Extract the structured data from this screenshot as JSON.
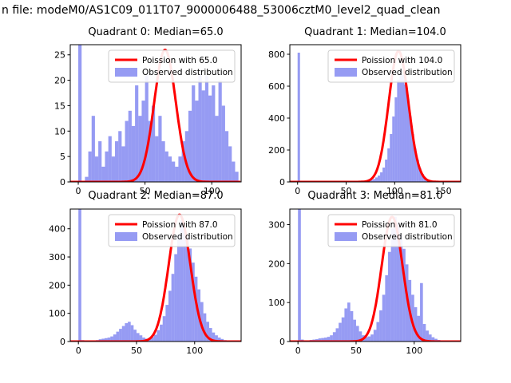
{
  "figure": {
    "title": "n file: modeM0/AS1C09_011T07_9000006488_53006cztM0_level2_quad_clean",
    "background": "#ffffff"
  },
  "colors": {
    "hist_fill": "#5058eb",
    "hist_alpha": 0.6,
    "poisson_line": "#ff0000",
    "axis": "#000000",
    "legend_border": "#cccccc",
    "legend_bg": "#ffffff"
  },
  "chart_data": [
    {
      "type": "histogram+line",
      "title": "Quadrant 0: Median=65.0",
      "legend": [
        "Poission with 65.0",
        "Observed distribution"
      ],
      "xlim": [
        -6,
        122
      ],
      "ylim": [
        0,
        27
      ],
      "xticks": [
        0,
        50,
        100
      ],
      "yticks": [
        0,
        5,
        10,
        15,
        20,
        25
      ],
      "bin_start": 0,
      "bin_width": 2.5,
      "counts": [
        60,
        0,
        1,
        6,
        13,
        5,
        8,
        3,
        6,
        9,
        5,
        8,
        10,
        7,
        12,
        14,
        11,
        19,
        13,
        16,
        21,
        12,
        15,
        9,
        13,
        8,
        6,
        5,
        4,
        3,
        5,
        8,
        10,
        14,
        19,
        16,
        22,
        18,
        21,
        17,
        19,
        13,
        20,
        15,
        10,
        7,
        4,
        2
      ],
      "poisson": {
        "lambda": 65,
        "peak": 26
      }
    },
    {
      "type": "histogram+line",
      "title": "Quadrant 1: Median=104.0",
      "legend": [
        "Poission with 104.0",
        "Observed distribution"
      ],
      "xlim": [
        -8,
        168
      ],
      "ylim": [
        0,
        860
      ],
      "xticks": [
        0,
        50,
        100,
        150
      ],
      "yticks": [
        0,
        200,
        400,
        600,
        800
      ],
      "bin_start": 0,
      "bin_width": 2.5,
      "counts": [
        810,
        4,
        0,
        0,
        0,
        0,
        0,
        0,
        2,
        0,
        0,
        1,
        0,
        0,
        2,
        0,
        0,
        1,
        0,
        0,
        2,
        0,
        1,
        0,
        0,
        2,
        0,
        3,
        5,
        8,
        12,
        18,
        28,
        40,
        60,
        90,
        140,
        210,
        300,
        410,
        530,
        640,
        700,
        670,
        610,
        520,
        410,
        300,
        210,
        140,
        85,
        50,
        28,
        14,
        7,
        3,
        2,
        0,
        0,
        0,
        0,
        0,
        0,
        0
      ],
      "poisson": {
        "lambda": 104,
        "peak": 820
      }
    },
    {
      "type": "histogram+line",
      "title": "Quadrant 2: Median=87.0",
      "legend": [
        "Poission with 87.0",
        "Observed distribution"
      ],
      "xlim": [
        -7,
        140
      ],
      "ylim": [
        0,
        470
      ],
      "xticks": [
        0,
        50,
        100
      ],
      "yticks": [
        0,
        100,
        200,
        300,
        400
      ],
      "bin_start": 0,
      "bin_width": 2.5,
      "counts": [
        600,
        5,
        2,
        2,
        3,
        4,
        5,
        8,
        10,
        12,
        14,
        18,
        25,
        35,
        45,
        55,
        65,
        70,
        58,
        42,
        30,
        22,
        14,
        10,
        12,
        16,
        24,
        40,
        60,
        90,
        130,
        180,
        240,
        310,
        380,
        430,
        415,
        375,
        330,
        280,
        230,
        185,
        140,
        100,
        70,
        48,
        32,
        22,
        14,
        9,
        5,
        3,
        2,
        1
      ],
      "poisson": {
        "lambda": 87,
        "peak": 450
      }
    },
    {
      "type": "histogram+line",
      "title": "Quadrant 3: Median=81.0",
      "legend": [
        "Poission with 81.0",
        "Observed distribution"
      ],
      "xlim": [
        -7,
        140
      ],
      "ylim": [
        0,
        340
      ],
      "xticks": [
        0,
        50,
        100
      ],
      "yticks": [
        0,
        100,
        200,
        300
      ],
      "bin_start": 0,
      "bin_width": 2.5,
      "counts": [
        500,
        5,
        2,
        3,
        4,
        5,
        6,
        8,
        9,
        10,
        12,
        16,
        24,
        34,
        48,
        62,
        85,
        100,
        78,
        56,
        40,
        26,
        16,
        11,
        13,
        18,
        30,
        50,
        80,
        120,
        170,
        230,
        290,
        320,
        305,
        275,
        238,
        198,
        158,
        120,
        88,
        66,
        150,
        45,
        28,
        18,
        11,
        7,
        4,
        2,
        1,
        1,
        0,
        0
      ],
      "poisson": {
        "lambda": 81,
        "peak": 320
      }
    }
  ]
}
